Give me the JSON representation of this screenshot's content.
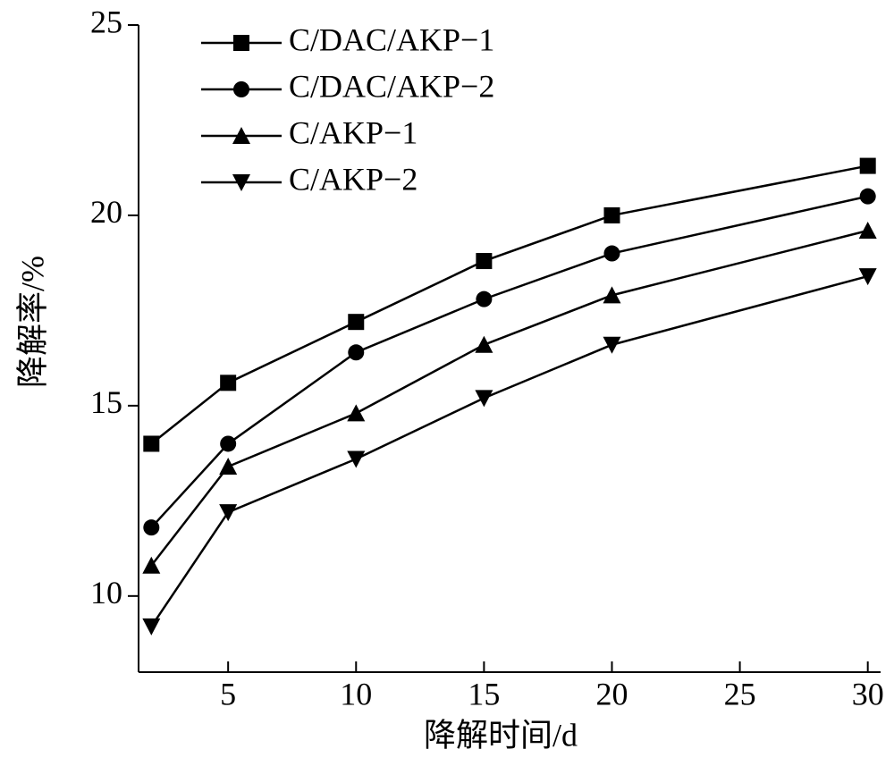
{
  "chart_data": {
    "type": "line",
    "x_label": "降解时间/d",
    "y_label": "降解率/%",
    "x": [
      2,
      5,
      10,
      15,
      20,
      30
    ],
    "series": [
      {
        "name": "C/DAC/AKP−1",
        "color": "#000000",
        "marker": "square",
        "values": [
          14.0,
          15.6,
          17.2,
          18.8,
          20.0,
          21.3
        ]
      },
      {
        "name": "C/DAC/AKP−2",
        "color": "#000000",
        "marker": "circle",
        "values": [
          11.8,
          14.0,
          16.4,
          17.8,
          19.0,
          20.5
        ]
      },
      {
        "name": "C/AKP−1",
        "color": "#000000",
        "marker": "triangle-up",
        "values": [
          10.8,
          13.4,
          14.8,
          16.6,
          17.9,
          19.6
        ]
      },
      {
        "name": "C/AKP−2",
        "color": "#000000",
        "marker": "triangle-down",
        "values": [
          9.2,
          12.2,
          13.6,
          15.2,
          16.6,
          18.4
        ]
      }
    ],
    "xlim": [
      1.5,
      30.5
    ],
    "xticks": [
      5,
      10,
      15,
      20,
      25,
      30
    ],
    "ylim": [
      8,
      25
    ],
    "yticks": [
      10,
      15,
      20,
      25
    ],
    "ytick_labels_override": null,
    "legend": "upper-left",
    "grid": false
  }
}
